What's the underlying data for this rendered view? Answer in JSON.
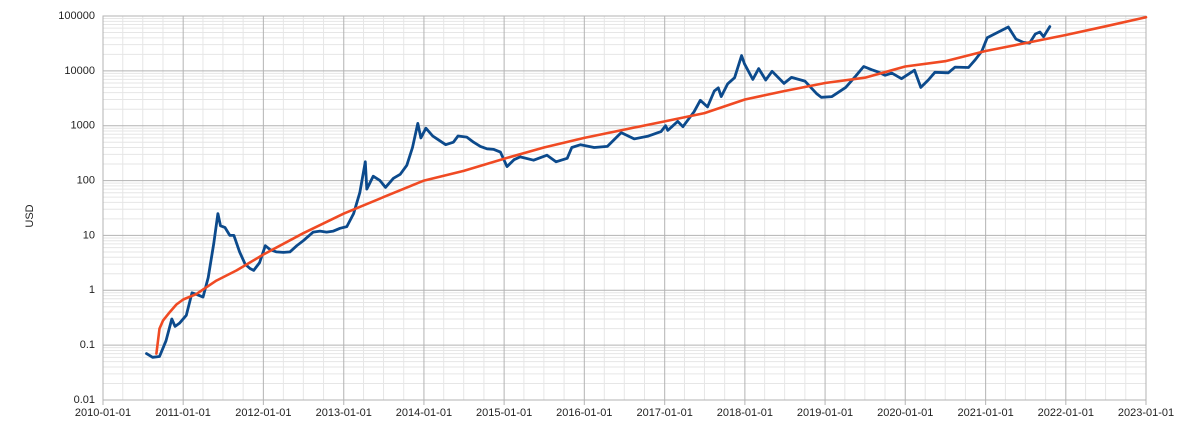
{
  "chart_data": {
    "type": "line",
    "title": "",
    "xlabel": "",
    "ylabel": "USD",
    "y_scale": "log",
    "ylim": [
      0.01,
      100000
    ],
    "xlim": [
      "2010-01-01",
      "2023-01-01"
    ],
    "grid": true,
    "legend": "none",
    "x_tick_labels": [
      "2010-01-01",
      "2011-01-01",
      "2012-01-01",
      "2013-01-01",
      "2014-01-01",
      "2015-01-01",
      "2016-01-01",
      "2017-01-01",
      "2018-01-01",
      "2019-01-01",
      "2020-01-01",
      "2021-01-01",
      "2022-01-01",
      "2023-01-01"
    ],
    "y_tick_labels": [
      "0.01",
      "0.1",
      "1",
      "10",
      "100",
      "1000",
      "10000",
      "100000"
    ],
    "series": [
      {
        "color": "#0c4a8c",
        "style": "price",
        "x": [
          "2010-07-18",
          "2010-08-15",
          "2010-09-15",
          "2010-10-15",
          "2010-11-10",
          "2010-11-25",
          "2010-12-15",
          "2011-01-15",
          "2011-02-10",
          "2011-03-01",
          "2011-04-01",
          "2011-04-25",
          "2011-05-20",
          "2011-06-08",
          "2011-06-20",
          "2011-07-10",
          "2011-08-01",
          "2011-08-20",
          "2011-09-15",
          "2011-10-10",
          "2011-11-01",
          "2011-11-18",
          "2011-12-15",
          "2012-01-10",
          "2012-02-01",
          "2012-03-01",
          "2012-04-01",
          "2012-05-01",
          "2012-06-01",
          "2012-07-01",
          "2012-08-15",
          "2012-09-15",
          "2012-10-15",
          "2012-11-15",
          "2012-12-15",
          "2013-01-15",
          "2013-02-15",
          "2013-03-15",
          "2013-04-09",
          "2013-04-16",
          "2013-05-15",
          "2013-06-15",
          "2013-07-10",
          "2013-08-15",
          "2013-09-15",
          "2013-10-15",
          "2013-11-10",
          "2013-12-04",
          "2013-12-18",
          "2014-01-10",
          "2014-02-10",
          "2014-02-28",
          "2014-04-10",
          "2014-05-15",
          "2014-06-05",
          "2014-07-15",
          "2014-08-15",
          "2014-09-15",
          "2014-10-15",
          "2014-11-15",
          "2014-12-15",
          "2015-01-14",
          "2015-02-15",
          "2015-03-15",
          "2015-05-15",
          "2015-07-15",
          "2015-08-25",
          "2015-10-15",
          "2015-11-05",
          "2015-12-15",
          "2016-02-15",
          "2016-04-15",
          "2016-06-17",
          "2016-08-15",
          "2016-10-15",
          "2016-12-15",
          "2017-01-05",
          "2017-01-15",
          "2017-03-01",
          "2017-03-25",
          "2017-05-15",
          "2017-06-12",
          "2017-07-15",
          "2017-08-15",
          "2017-09-02",
          "2017-09-15",
          "2017-10-15",
          "2017-11-15",
          "2017-12-17",
          "2017-12-30",
          "2018-02-06",
          "2018-03-05",
          "2018-04-06",
          "2018-05-05",
          "2018-06-28",
          "2018-08-01",
          "2018-10-01",
          "2018-11-25",
          "2018-12-15",
          "2019-02-01",
          "2019-04-05",
          "2019-05-20",
          "2019-06-26",
          "2019-08-01",
          "2019-09-01",
          "2019-10-01",
          "2019-11-01",
          "2019-12-15",
          "2020-02-12",
          "2020-03-12",
          "2020-04-15",
          "2020-05-15",
          "2020-07-15",
          "2020-08-15",
          "2020-10-15",
          "2020-11-15",
          "2020-12-15",
          "2021-01-08",
          "2021-02-15",
          "2021-04-14",
          "2021-05-19",
          "2021-06-22",
          "2021-07-20",
          "2021-08-15",
          "2021-09-05",
          "2021-09-22",
          "2021-10-10",
          "2021-10-20"
        ],
        "y": [
          0.07,
          0.06,
          0.062,
          0.12,
          0.3,
          0.22,
          0.25,
          0.35,
          0.9,
          0.85,
          0.75,
          1.7,
          7,
          25,
          15,
          14,
          10,
          10,
          5.0,
          3.0,
          2.5,
          2.3,
          3.2,
          6.5,
          5.5,
          5.0,
          4.9,
          5.0,
          6.5,
          8.0,
          11.5,
          12.0,
          11.5,
          12.0,
          13.5,
          14.5,
          25.0,
          60.0,
          220.0,
          70.0,
          120.0,
          100.0,
          75.0,
          110.0,
          130.0,
          190.0,
          400.0,
          1100.0,
          600.0,
          900.0,
          650.0,
          580.0,
          450.0,
          500.0,
          650.0,
          620.0,
          500.0,
          420.0,
          380.0,
          370.0,
          330.0,
          180.0,
          240.0,
          270.0,
          235.0,
          290.0,
          220.0,
          255.0,
          400.0,
          450.0,
          400.0,
          420.0,
          750.0,
          575.0,
          640.0,
          780.0,
          1000.0,
          820.0,
          1200.0,
          960.0,
          1800.0,
          2900.0,
          2200.0,
          4300.0,
          4900.0,
          3400.0,
          5800.0,
          7500.0,
          19000.0,
          13500.0,
          7000.0,
          11000.0,
          6800.0,
          9800.0,
          5900.0,
          7600.0,
          6500.0,
          3800.0,
          3300.0,
          3400.0,
          5000.0,
          8000.0,
          12000.0,
          10500.0,
          9500.0,
          8300.0,
          9100.0,
          7200.0,
          10300.0,
          5000.0,
          6800.0,
          9400.0,
          9200.0,
          11700.0,
          11500.0,
          16000.0,
          23000.0,
          40000.0,
          48000.0,
          63000.0,
          38000.0,
          33000.0,
          32000.0,
          47000.0,
          51000.0,
          42000.0,
          55000.0,
          64000.0
        ]
      },
      {
        "color": "#f04a23",
        "style": "fit",
        "x": [
          "2010-09-01",
          "2010-09-15",
          "2010-10-01",
          "2010-11-01",
          "2010-12-01",
          "2011-01-01",
          "2011-03-01",
          "2011-06-01",
          "2011-09-01",
          "2012-01-01",
          "2012-07-01",
          "2013-01-01",
          "2013-07-01",
          "2014-01-01",
          "2014-07-01",
          "2015-01-01",
          "2015-07-01",
          "2016-01-01",
          "2016-07-01",
          "2017-01-01",
          "2017-07-01",
          "2018-01-01",
          "2018-07-01",
          "2019-01-01",
          "2019-07-01",
          "2020-01-01",
          "2020-07-01",
          "2021-01-01",
          "2021-07-01",
          "2022-01-01",
          "2022-07-01",
          "2023-01-01"
        ],
        "y": [
          0.07,
          0.2,
          0.28,
          0.4,
          0.55,
          0.68,
          0.85,
          1.5,
          2.3,
          4.5,
          11,
          25,
          50,
          100,
          150,
          250,
          400,
          600,
          850,
          1200,
          1700,
          3000,
          4300,
          6000,
          7500,
          12000,
          15000,
          23000,
          32000,
          45000,
          65000,
          95000
        ]
      }
    ]
  }
}
